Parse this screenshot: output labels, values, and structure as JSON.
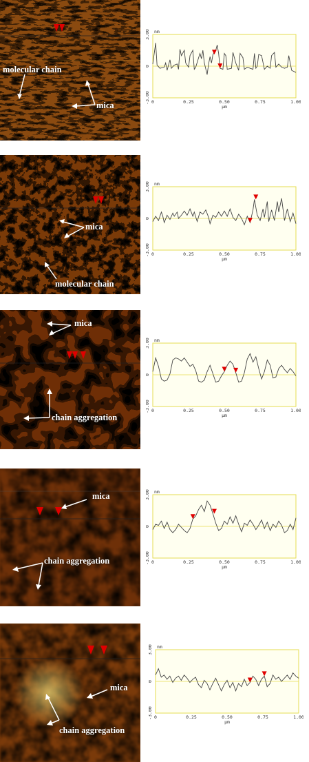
{
  "panels": [
    {
      "labels": [
        "molecular chain",
        "mica"
      ],
      "profile": {
        "unit_y": "nm",
        "unit_x": "µm",
        "y_ticks": [
          "3.00",
          "0",
          "-3.00"
        ],
        "x_ticks": [
          "0",
          "0.25",
          "0.50",
          "0.75",
          "1.00"
        ],
        "y_range": [
          -3,
          3
        ],
        "x_range": [
          0,
          1
        ],
        "markers_x": [
          0.43,
          0.47
        ],
        "trace": [
          [
            0,
            0.2
          ],
          [
            0.02,
            2.2
          ],
          [
            0.03,
            0.1
          ],
          [
            0.05,
            -0.2
          ],
          [
            0.08,
            -0.1
          ],
          [
            0.09,
            0.3
          ],
          [
            0.1,
            -0.4
          ],
          [
            0.12,
            0.6
          ],
          [
            0.13,
            -0.2
          ],
          [
            0.15,
            0.1
          ],
          [
            0.17,
            0.2
          ],
          [
            0.18,
            -0.3
          ],
          [
            0.19,
            1.6
          ],
          [
            0.2,
            1.0
          ],
          [
            0.22,
            1.5
          ],
          [
            0.23,
            0.3
          ],
          [
            0.25,
            -0.1
          ],
          [
            0.26,
            1.0
          ],
          [
            0.28,
            1.5
          ],
          [
            0.29,
            -0.3
          ],
          [
            0.3,
            -0.1
          ],
          [
            0.32,
            0.8
          ],
          [
            0.33,
            1.2
          ],
          [
            0.34,
            0.7
          ],
          [
            0.35,
            1.5
          ],
          [
            0.36,
            0.3
          ],
          [
            0.38,
            -0.8
          ],
          [
            0.39,
            0.2
          ],
          [
            0.4,
            0.9
          ],
          [
            0.41,
            0.3
          ],
          [
            0.42,
            1.1
          ],
          [
            0.44,
            1.5
          ],
          [
            0.45,
            2.0
          ],
          [
            0.46,
            1.2
          ],
          [
            0.47,
            -0.2
          ],
          [
            0.49,
            -0.3
          ],
          [
            0.5,
            1.2
          ],
          [
            0.51,
            1.0
          ],
          [
            0.52,
            -0.3
          ],
          [
            0.55,
            -0.2
          ],
          [
            0.56,
            1.3
          ],
          [
            0.58,
            0.3
          ],
          [
            0.6,
            -0.4
          ],
          [
            0.61,
            1.2
          ],
          [
            0.63,
            0.8
          ],
          [
            0.64,
            -0.3
          ],
          [
            0.66,
            -0.1
          ],
          [
            0.68,
            -0.2
          ],
          [
            0.7,
            -0.3
          ],
          [
            0.71,
            1.2
          ],
          [
            0.72,
            -0.2
          ],
          [
            0.73,
            0.0
          ],
          [
            0.74,
            1.1
          ],
          [
            0.76,
            1.0
          ],
          [
            0.78,
            -0.3
          ],
          [
            0.8,
            0.0
          ],
          [
            0.82,
            -0.2
          ],
          [
            0.83,
            1.0
          ],
          [
            0.85,
            1.3
          ],
          [
            0.86,
            -0.1
          ],
          [
            0.88,
            0.2
          ],
          [
            0.9,
            -0.1
          ],
          [
            0.92,
            -0.2
          ],
          [
            0.94,
            -0.1
          ],
          [
            0.95,
            1.0
          ],
          [
            0.97,
            -0.4
          ],
          [
            1.0,
            -0.6
          ]
        ]
      }
    },
    {
      "labels": [
        "mica",
        "molecular chain"
      ],
      "profile": {
        "unit_y": "nm",
        "unit_x": "µm",
        "y_ticks": [
          "3.00",
          "0",
          "-3.00"
        ],
        "x_ticks": [
          "0",
          "0.25",
          "0.50",
          "0.75",
          "1.00"
        ],
        "y_range": [
          -3,
          3
        ],
        "x_range": [
          0,
          1
        ],
        "markers_x": [
          0.68,
          0.72
        ],
        "trace": [
          [
            0,
            -0.3
          ],
          [
            0.02,
            0.2
          ],
          [
            0.04,
            -0.2
          ],
          [
            0.06,
            0.6
          ],
          [
            0.07,
            0.2
          ],
          [
            0.08,
            -0.4
          ],
          [
            0.1,
            0.3
          ],
          [
            0.12,
            -0.1
          ],
          [
            0.14,
            0.5
          ],
          [
            0.15,
            0.2
          ],
          [
            0.17,
            0.6
          ],
          [
            0.18,
            0.0
          ],
          [
            0.2,
            0.3
          ],
          [
            0.22,
            0.7
          ],
          [
            0.24,
            0.3
          ],
          [
            0.26,
            0.9
          ],
          [
            0.28,
            0.2
          ],
          [
            0.29,
            0.6
          ],
          [
            0.31,
            -0.3
          ],
          [
            0.33,
            0.6
          ],
          [
            0.35,
            0.4
          ],
          [
            0.37,
            0.8
          ],
          [
            0.39,
            0.1
          ],
          [
            0.4,
            -0.5
          ],
          [
            0.42,
            0.3
          ],
          [
            0.44,
            0.1
          ],
          [
            0.46,
            0.6
          ],
          [
            0.48,
            0.2
          ],
          [
            0.5,
            0.7
          ],
          [
            0.52,
            0.2
          ],
          [
            0.54,
            0.9
          ],
          [
            0.56,
            0.1
          ],
          [
            0.58,
            -0.2
          ],
          [
            0.6,
            0.4
          ],
          [
            0.62,
            0.0
          ],
          [
            0.64,
            -0.6
          ],
          [
            0.66,
            0.2
          ],
          [
            0.68,
            -0.4
          ],
          [
            0.7,
            0.8
          ],
          [
            0.71,
            1.8
          ],
          [
            0.73,
            0.3
          ],
          [
            0.75,
            -0.2
          ],
          [
            0.77,
            0.9
          ],
          [
            0.78,
            0.1
          ],
          [
            0.8,
            1.6
          ],
          [
            0.81,
            -0.3
          ],
          [
            0.83,
            0.8
          ],
          [
            0.85,
            -0.2
          ],
          [
            0.87,
            1.6
          ],
          [
            0.88,
            0.6
          ],
          [
            0.9,
            1.9
          ],
          [
            0.92,
            -0.2
          ],
          [
            0.94,
            0.9
          ],
          [
            0.96,
            -0.3
          ],
          [
            0.98,
            0.5
          ],
          [
            1.0,
            -0.5
          ]
        ]
      }
    },
    {
      "labels": [
        "mica",
        "chain aggregation"
      ],
      "profile": {
        "unit_y": "nm",
        "unit_x": "µm",
        "y_ticks": [
          "3.00",
          "0",
          "-3.00"
        ],
        "x_ticks": [
          "0",
          "0.25",
          "0.50",
          "0.75",
          "1.00"
        ],
        "y_range": [
          -3,
          3
        ],
        "x_range": [
          0,
          1
        ],
        "markers_x": [
          0.5,
          0.58
        ],
        "trace": [
          [
            0,
            0.3
          ],
          [
            0.02,
            1.6
          ],
          [
            0.04,
            0.8
          ],
          [
            0.06,
            -0.4
          ],
          [
            0.08,
            -0.6
          ],
          [
            0.1,
            -0.5
          ],
          [
            0.12,
            0.1
          ],
          [
            0.14,
            1.4
          ],
          [
            0.16,
            1.6
          ],
          [
            0.18,
            1.5
          ],
          [
            0.2,
            1.3
          ],
          [
            0.22,
            1.6
          ],
          [
            0.24,
            1.2
          ],
          [
            0.26,
            0.8
          ],
          [
            0.28,
            1.0
          ],
          [
            0.3,
            0.4
          ],
          [
            0.32,
            -0.6
          ],
          [
            0.34,
            -0.7
          ],
          [
            0.36,
            -0.5
          ],
          [
            0.38,
            0.3
          ],
          [
            0.4,
            0.9
          ],
          [
            0.42,
            0.1
          ],
          [
            0.44,
            -0.7
          ],
          [
            0.46,
            -0.6
          ],
          [
            0.48,
            -0.1
          ],
          [
            0.5,
            0.3
          ],
          [
            0.52,
            0.9
          ],
          [
            0.54,
            1.3
          ],
          [
            0.56,
            1.0
          ],
          [
            0.58,
            0.2
          ],
          [
            0.6,
            -0.7
          ],
          [
            0.62,
            -0.6
          ],
          [
            0.64,
            0.2
          ],
          [
            0.66,
            1.5
          ],
          [
            0.68,
            2.0
          ],
          [
            0.7,
            1.2
          ],
          [
            0.72,
            1.7
          ],
          [
            0.74,
            0.6
          ],
          [
            0.76,
            -0.4
          ],
          [
            0.78,
            0.3
          ],
          [
            0.8,
            1.4
          ],
          [
            0.82,
            0.9
          ],
          [
            0.84,
            -0.3
          ],
          [
            0.86,
            -0.2
          ],
          [
            0.88,
            0.6
          ],
          [
            0.9,
            0.9
          ],
          [
            0.92,
            0.5
          ],
          [
            0.94,
            0.2
          ],
          [
            0.96,
            0.6
          ],
          [
            0.98,
            0.3
          ],
          [
            1.0,
            -0.1
          ]
        ]
      }
    },
    {
      "labels": [
        "mica",
        "chain aggregation"
      ],
      "profile": {
        "unit_y": "nm",
        "unit_x": "µm",
        "y_ticks": [
          "3.00",
          "0",
          "-3.00"
        ],
        "x_ticks": [
          "0",
          "0.25",
          "0.50",
          "0.75",
          "1.00"
        ],
        "y_range": [
          -3,
          3
        ],
        "x_range": [
          0,
          1
        ],
        "markers_x": [
          0.28,
          0.43
        ],
        "trace": [
          [
            0,
            -0.3
          ],
          [
            0.02,
            0.2
          ],
          [
            0.04,
            0.1
          ],
          [
            0.06,
            0.5
          ],
          [
            0.08,
            -0.2
          ],
          [
            0.1,
            0.4
          ],
          [
            0.12,
            -0.3
          ],
          [
            0.14,
            -0.6
          ],
          [
            0.16,
            -0.3
          ],
          [
            0.18,
            0.2
          ],
          [
            0.2,
            -0.1
          ],
          [
            0.22,
            -0.4
          ],
          [
            0.24,
            -0.6
          ],
          [
            0.26,
            -0.2
          ],
          [
            0.28,
            0.7
          ],
          [
            0.3,
            1.0
          ],
          [
            0.32,
            1.6
          ],
          [
            0.34,
            2.0
          ],
          [
            0.36,
            1.4
          ],
          [
            0.38,
            2.4
          ],
          [
            0.4,
            2.0
          ],
          [
            0.42,
            1.2
          ],
          [
            0.44,
            0.3
          ],
          [
            0.46,
            -0.4
          ],
          [
            0.48,
            -0.2
          ],
          [
            0.5,
            0.5
          ],
          [
            0.52,
            0.2
          ],
          [
            0.54,
            0.9
          ],
          [
            0.56,
            0.3
          ],
          [
            0.58,
            1.0
          ],
          [
            0.6,
            0.2
          ],
          [
            0.62,
            -0.5
          ],
          [
            0.64,
            0.3
          ],
          [
            0.66,
            0.1
          ],
          [
            0.68,
            0.6
          ],
          [
            0.7,
            0.2
          ],
          [
            0.72,
            -0.3
          ],
          [
            0.74,
            0.1
          ],
          [
            0.76,
            0.6
          ],
          [
            0.78,
            -0.2
          ],
          [
            0.8,
            0.4
          ],
          [
            0.82,
            -0.4
          ],
          [
            0.84,
            0.2
          ],
          [
            0.86,
            -0.1
          ],
          [
            0.88,
            0.5
          ],
          [
            0.9,
            0.1
          ],
          [
            0.92,
            -0.6
          ],
          [
            0.94,
            -0.4
          ],
          [
            0.96,
            0.2
          ],
          [
            0.98,
            -0.3
          ],
          [
            1.0,
            0.8
          ]
        ]
      }
    },
    {
      "labels": [
        "mica",
        "chain aggregation"
      ],
      "profile": {
        "unit_y": "nm",
        "unit_x": "µm",
        "y_ticks": [
          "3.00",
          "0",
          "-3.00"
        ],
        "x_ticks": [
          "0",
          "0.25",
          "0.50",
          "0.75",
          "1.00"
        ],
        "y_range": [
          -3,
          3
        ],
        "x_range": [
          0,
          1
        ],
        "markers_x": [
          0.66,
          0.76
        ],
        "trace": [
          [
            0,
            0.6
          ],
          [
            0.02,
            1.2
          ],
          [
            0.04,
            0.4
          ],
          [
            0.06,
            0.6
          ],
          [
            0.08,
            0.2
          ],
          [
            0.1,
            0.5
          ],
          [
            0.12,
            -0.1
          ],
          [
            0.14,
            0.3
          ],
          [
            0.16,
            0.5
          ],
          [
            0.18,
            0.1
          ],
          [
            0.2,
            0.6
          ],
          [
            0.22,
            0.3
          ],
          [
            0.24,
            -0.1
          ],
          [
            0.26,
            0.2
          ],
          [
            0.28,
            0.4
          ],
          [
            0.3,
            -0.3
          ],
          [
            0.32,
            -0.6
          ],
          [
            0.34,
            0.1
          ],
          [
            0.36,
            -0.2
          ],
          [
            0.38,
            -0.8
          ],
          [
            0.4,
            -0.2
          ],
          [
            0.42,
            0.3
          ],
          [
            0.44,
            -0.3
          ],
          [
            0.46,
            -0.9
          ],
          [
            0.48,
            -0.3
          ],
          [
            0.5,
            0.1
          ],
          [
            0.52,
            -0.6
          ],
          [
            0.54,
            -0.1
          ],
          [
            0.56,
            -0.9
          ],
          [
            0.58,
            -0.2
          ],
          [
            0.6,
            -0.5
          ],
          [
            0.62,
            0.2
          ],
          [
            0.64,
            -0.4
          ],
          [
            0.66,
            -0.1
          ],
          [
            0.68,
            0.5
          ],
          [
            0.7,
            0.2
          ],
          [
            0.72,
            -0.4
          ],
          [
            0.74,
            0.2
          ],
          [
            0.76,
            0.5
          ],
          [
            0.78,
            -0.5
          ],
          [
            0.8,
            -0.2
          ],
          [
            0.82,
            0.6
          ],
          [
            0.84,
            0.2
          ],
          [
            0.86,
            0.4
          ],
          [
            0.88,
            0.0
          ],
          [
            0.9,
            0.3
          ],
          [
            0.92,
            0.6
          ],
          [
            0.94,
            0.2
          ],
          [
            0.96,
            0.8
          ],
          [
            0.98,
            0.5
          ],
          [
            1.0,
            0.3
          ]
        ]
      }
    }
  ]
}
